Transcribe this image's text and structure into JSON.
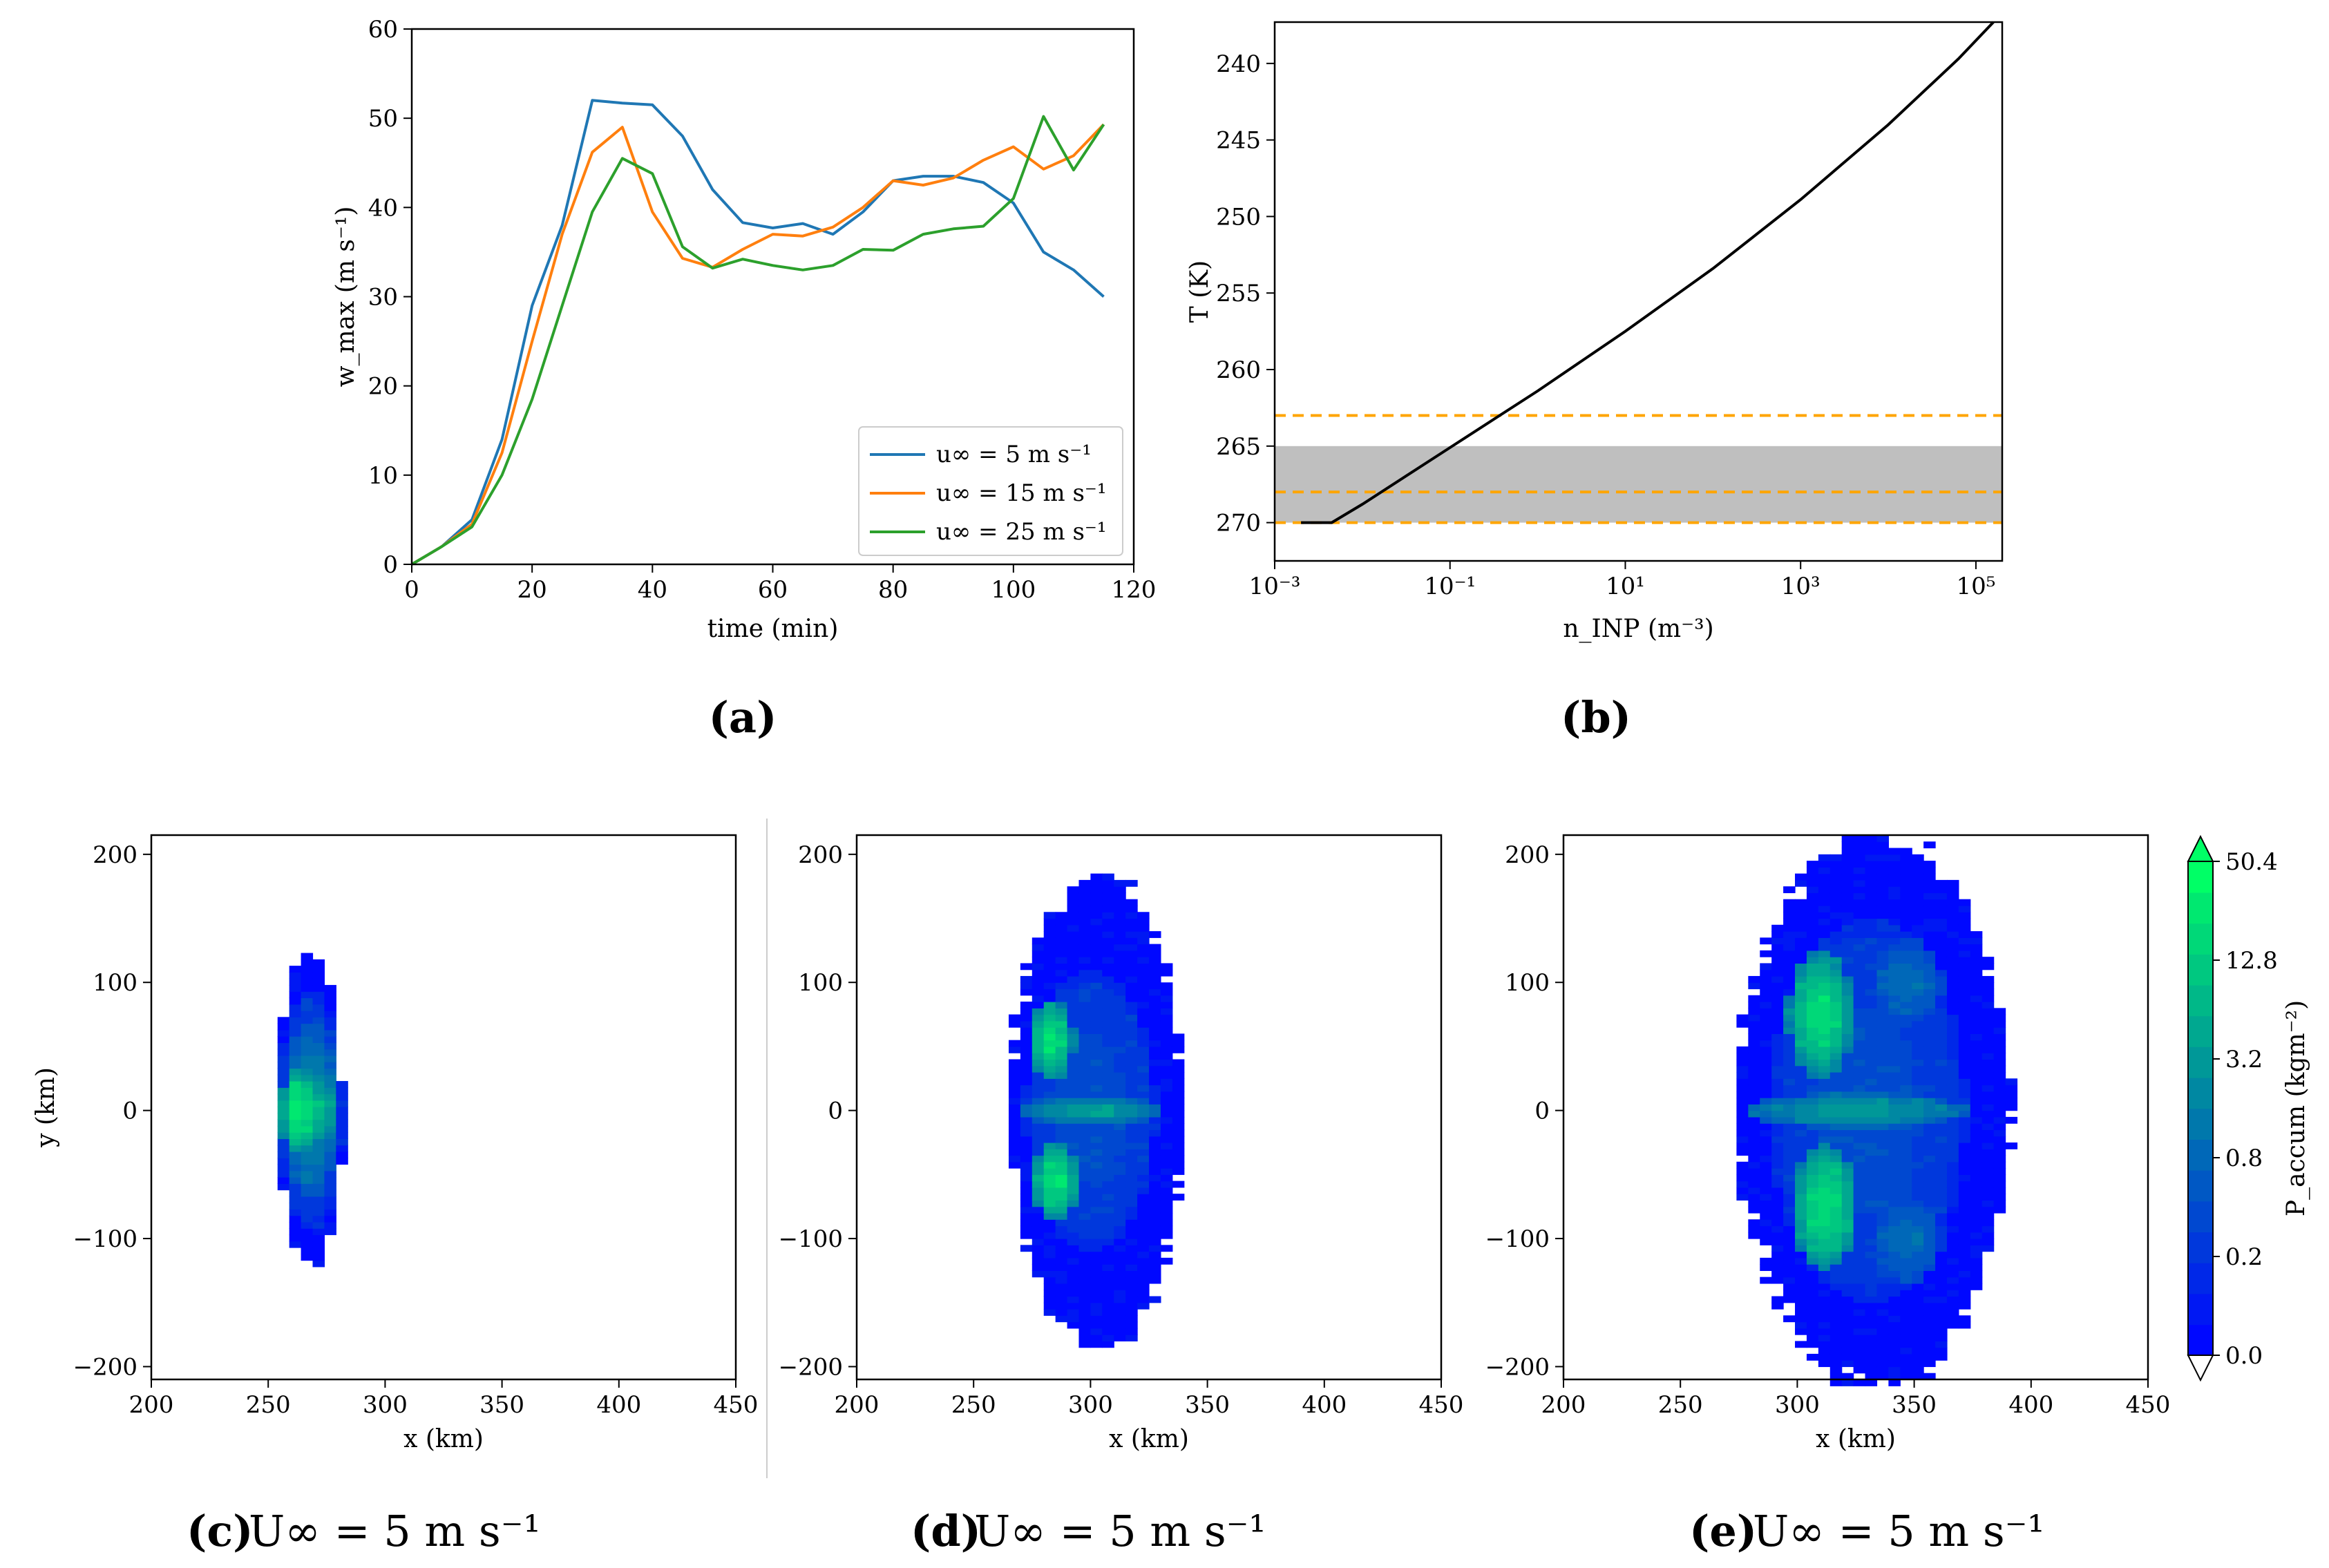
{
  "figure": {
    "captions": {
      "a": "(a)",
      "b": "(b)",
      "c_label": "(c)",
      "c_text": "U∞ = 5 m s⁻¹",
      "d_label": "(d)",
      "d_text": "U∞ = 5 m s⁻¹",
      "e_label": "(e)",
      "e_text": "U∞ = 5 m s⁻¹"
    },
    "colorbar": {
      "label": "P_accum (kgm⁻²)",
      "ticks": [
        "0.0",
        "0.2",
        "0.8",
        "3.2",
        "12.8",
        "50.4"
      ],
      "colors": [
        "#0008ff",
        "#0018f3",
        "#0028e8",
        "#0038dc",
        "#0048d0",
        "#0058c4",
        "#0068b8",
        "#0078ac",
        "#0088a2",
        "#009898",
        "#00a890",
        "#00b888",
        "#00c880",
        "#00d878",
        "#00e870",
        "#00ff66"
      ]
    }
  },
  "chart_data": [
    {
      "type": "line",
      "panel": "a",
      "xlabel": "time (min)",
      "ylabel": "w_max (m s⁻¹)",
      "xlim": [
        0,
        120
      ],
      "ylim": [
        0,
        60
      ],
      "xticks": [
        0,
        20,
        40,
        60,
        80,
        100,
        120
      ],
      "yticks": [
        0,
        10,
        20,
        30,
        40,
        50,
        60
      ],
      "legend_position": "lower-right",
      "x": [
        0,
        5,
        10,
        15,
        20,
        25,
        30,
        35,
        40,
        45,
        50,
        55,
        60,
        65,
        70,
        75,
        80,
        85,
        90,
        95,
        100,
        105,
        110,
        115
      ],
      "series": [
        {
          "name": "u∞ = 5 m s⁻¹",
          "color": "#1f77b4",
          "values": [
            0,
            2,
            5,
            14,
            29,
            38,
            52,
            51.7,
            51.5,
            48,
            42,
            38.3,
            37.7,
            38.2,
            37,
            39.5,
            43,
            43.5,
            43.5,
            42.8,
            40.5,
            35,
            33,
            30
          ]
        },
        {
          "name": "u∞ = 15 m s⁻¹",
          "color": "#ff7f0e",
          "values": [
            0,
            2,
            4.5,
            12.5,
            25,
            37,
            46.2,
            49,
            39.5,
            34.3,
            33.3,
            35.3,
            37,
            36.8,
            37.8,
            40,
            43,
            42.5,
            43.3,
            45.3,
            46.8,
            44.3,
            45.8,
            49.3
          ]
        },
        {
          "name": "u∞ = 25 m s⁻¹",
          "color": "#2ca02c",
          "values": [
            0,
            2,
            4.2,
            10,
            18.5,
            29,
            39.5,
            45.5,
            43.8,
            35.6,
            33.2,
            34.2,
            33.5,
            33,
            33.5,
            35.3,
            35.2,
            37,
            37.6,
            37.9,
            41,
            50.2,
            44.2,
            49.3
          ]
        }
      ]
    },
    {
      "type": "line",
      "panel": "b",
      "xlabel": "n_INP (m⁻³)",
      "ylabel": "T (K)",
      "x_scale": "log",
      "xlim_log10": [
        -3,
        5.3
      ],
      "ylim": [
        272.5,
        237.3
      ],
      "y_inverted": true,
      "yticks": [
        240,
        245,
        250,
        255,
        260,
        265,
        270
      ],
      "xticks": [
        "10⁻³",
        "10⁻¹",
        "10¹",
        "10³",
        "10⁵"
      ],
      "curve": {
        "color": "#000000",
        "points": [
          [
            -2.7,
            270
          ],
          [
            -2.35,
            270
          ],
          [
            -2,
            268.8
          ],
          [
            -1,
            265.1
          ],
          [
            0,
            261.4
          ],
          [
            1,
            257.5
          ],
          [
            2,
            253.4
          ],
          [
            3,
            248.9
          ],
          [
            4,
            244
          ],
          [
            4.8,
            239.7
          ],
          [
            5.2,
            237.3
          ]
        ]
      },
      "shaded_band": [
        265,
        270
      ],
      "dashed_lines": [
        263,
        268,
        270
      ],
      "dashed_color": "#ffa500"
    },
    {
      "type": "heatmap",
      "panel": "c",
      "xlabel": "x (km)",
      "ylabel": "y (km)",
      "xlim": [
        200,
        450
      ],
      "ylim": [
        -210,
        215
      ],
      "xticks": [
        200,
        250,
        300,
        350,
        400,
        450
      ],
      "yticks": [
        -200,
        -100,
        0,
        100,
        200
      ],
      "extent": {
        "x_center": 268,
        "x_half": 14,
        "y_half": 122
      },
      "features": [
        {
          "kind": "blob",
          "x": 263,
          "y": 0,
          "rx": 8,
          "ry": 35,
          "level": 14
        },
        {
          "kind": "blob",
          "x": 272,
          "y": 0,
          "rx": 8,
          "ry": 28,
          "level": 11
        },
        {
          "kind": "blob",
          "x": 268,
          "y": 0,
          "rx": 12,
          "ry": 70,
          "level": 8
        },
        {
          "kind": "blob",
          "x": 268,
          "y": 0,
          "rx": 14,
          "ry": 95,
          "level": 4
        }
      ]
    },
    {
      "type": "heatmap",
      "panel": "d",
      "xlabel": "x (km)",
      "xlim": [
        200,
        450
      ],
      "ylim": [
        -210,
        215
      ],
      "xticks": [
        200,
        250,
        300,
        350,
        400,
        450
      ],
      "yticks": [
        -200,
        -100,
        0,
        100,
        200
      ],
      "extent": {
        "x_left": 265,
        "x_right": 340,
        "x_center": 305,
        "y_half": 185
      },
      "features": [
        {
          "kind": "blob",
          "x": 283,
          "y": 55,
          "rx": 10,
          "ry": 32,
          "level": 13
        },
        {
          "kind": "blob",
          "x": 285,
          "y": -55,
          "rx": 10,
          "ry": 32,
          "level": 13
        },
        {
          "kind": "blob",
          "x": 300,
          "y": 0,
          "rx": 32,
          "ry": 12,
          "level": 9
        },
        {
          "kind": "blob",
          "x": 300,
          "y": 0,
          "rx": 28,
          "ry": 110,
          "level": 4
        }
      ]
    },
    {
      "type": "heatmap",
      "panel": "e",
      "xlabel": "x (km)",
      "xlim": [
        200,
        450
      ],
      "ylim": [
        -210,
        215
      ],
      "xticks": [
        200,
        250,
        300,
        350,
        400,
        450
      ],
      "yticks": [
        -200,
        -100,
        0,
        100,
        200
      ],
      "extent": {
        "x_left": 274,
        "x_right": 392,
        "x_center": 335,
        "y_half": 215
      },
      "features": [
        {
          "kind": "blob",
          "x": 310,
          "y": 75,
          "rx": 14,
          "ry": 50,
          "level": 13
        },
        {
          "kind": "blob",
          "x": 312,
          "y": -75,
          "rx": 14,
          "ry": 50,
          "level": 13
        },
        {
          "kind": "blob",
          "x": 325,
          "y": 0,
          "rx": 48,
          "ry": 14,
          "level": 9
        },
        {
          "kind": "blob",
          "x": 347,
          "y": 100,
          "rx": 15,
          "ry": 35,
          "level": 6
        },
        {
          "kind": "blob",
          "x": 347,
          "y": -100,
          "rx": 15,
          "ry": 35,
          "level": 6
        },
        {
          "kind": "blob",
          "x": 330,
          "y": 0,
          "rx": 42,
          "ry": 150,
          "level": 4
        }
      ]
    }
  ]
}
